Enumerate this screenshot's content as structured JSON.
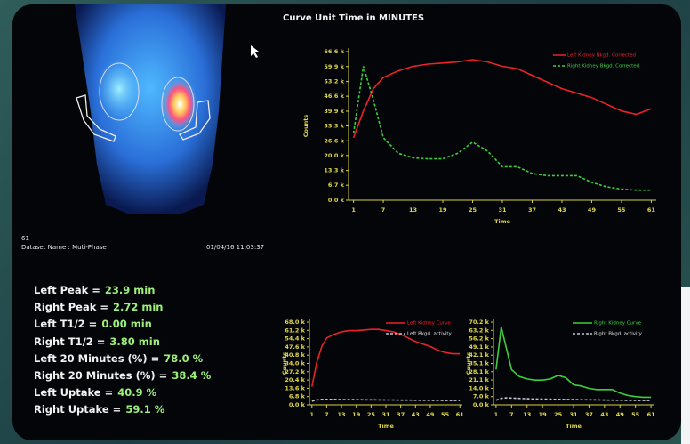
{
  "chart_data": [
    {
      "type": "line",
      "title": "Curve Unit Time in MINUTES",
      "xlabel": "Time",
      "ylabel": "Counts",
      "x": [
        1,
        3,
        5,
        7,
        10,
        13,
        16,
        19,
        22,
        25,
        28,
        31,
        34,
        37,
        40,
        43,
        46,
        49,
        52,
        55,
        58,
        61
      ],
      "xlim": [
        0,
        62
      ],
      "xticks": [
        1,
        7,
        13,
        19,
        25,
        31,
        37,
        43,
        49,
        55,
        61
      ],
      "ylim": [
        0,
        66600
      ],
      "yticks": [
        {
          "value": 0,
          "label": "0.0 k"
        },
        {
          "value": 6700,
          "label": "6.7 k"
        },
        {
          "value": 13300,
          "label": "13.3 k"
        },
        {
          "value": 20000,
          "label": "20.0 k"
        },
        {
          "value": 26600,
          "label": "26.6 k"
        },
        {
          "value": 33300,
          "label": "33.3 k"
        },
        {
          "value": 39900,
          "label": "39.9 k"
        },
        {
          "value": 46600,
          "label": "46.6 k"
        },
        {
          "value": 53200,
          "label": "53.2 k"
        },
        {
          "value": 59900,
          "label": "59.9 k"
        },
        {
          "value": 66600,
          "label": "66.6 k"
        }
      ],
      "series": [
        {
          "name": "Left Kidney Bkgd. Corrected",
          "color": "#ec2228",
          "dashed": false,
          "values": [
            28000,
            40000,
            50000,
            55000,
            58000,
            60000,
            61000,
            61500,
            62000,
            63000,
            62000,
            60000,
            59000,
            56000,
            53000,
            50000,
            48000,
            46000,
            43000,
            40000,
            38500,
            41000
          ]
        },
        {
          "name": "Right Kidney Bkgd. Corrected",
          "color": "#3cd03c",
          "dashed": true,
          "values": [
            30000,
            60000,
            45000,
            28000,
            21000,
            19000,
            18500,
            18500,
            21000,
            26000,
            22000,
            15000,
            15000,
            12000,
            11000,
            11000,
            11000,
            8000,
            6000,
            5000,
            4500,
            4500
          ]
        }
      ]
    },
    {
      "type": "line",
      "xlabel": "Time",
      "ylabel": "Counts",
      "x": [
        1,
        3,
        5,
        7,
        10,
        13,
        16,
        19,
        22,
        25,
        28,
        31,
        34,
        37,
        40,
        43,
        46,
        49,
        52,
        55,
        58,
        61
      ],
      "xlim": [
        0,
        62
      ],
      "xticks": [
        1,
        7,
        13,
        19,
        25,
        31,
        37,
        43,
        49,
        55,
        61
      ],
      "ylim": [
        0,
        68000
      ],
      "yticks": [
        {
          "value": 0,
          "label": "0.0 k"
        },
        {
          "value": 6800,
          "label": "6.8 k"
        },
        {
          "value": 13600,
          "label": "13.6 k"
        },
        {
          "value": 20400,
          "label": "20.4 k"
        },
        {
          "value": 27200,
          "label": "27.2 k"
        },
        {
          "value": 34000,
          "label": "34.0 k"
        },
        {
          "value": 40800,
          "label": "40.8 k"
        },
        {
          "value": 47600,
          "label": "47.6 k"
        },
        {
          "value": 54400,
          "label": "54.4 k"
        },
        {
          "value": 61200,
          "label": "61.2 k"
        },
        {
          "value": 68000,
          "label": "68.0 k"
        }
      ],
      "series": [
        {
          "name": "Left Kidney Curve",
          "color": "#ec2228",
          "dashed": false,
          "values": [
            15000,
            35000,
            48000,
            55000,
            58000,
            60000,
            61000,
            61000,
            61500,
            62000,
            62000,
            61000,
            60000,
            58000,
            55000,
            52000,
            50000,
            48000,
            45000,
            43000,
            42000,
            42000
          ]
        },
        {
          "name": "Left Bkgd. activity",
          "color": "#c4c4d4",
          "dashed": true,
          "values": [
            3000,
            4000,
            4500,
            4500,
            4500,
            4400,
            4300,
            4300,
            4200,
            4200,
            4100,
            4000,
            4000,
            3900,
            3900,
            3800,
            3800,
            3700,
            3700,
            3600,
            3600,
            3600
          ]
        }
      ]
    },
    {
      "type": "line",
      "xlabel": "Time",
      "ylabel": "Counts",
      "x": [
        1,
        3,
        5,
        7,
        10,
        13,
        16,
        19,
        22,
        25,
        28,
        31,
        34,
        37,
        40,
        43,
        46,
        49,
        52,
        55,
        58,
        61
      ],
      "xlim": [
        0,
        62
      ],
      "xticks": [
        1,
        7,
        13,
        19,
        25,
        31,
        37,
        43,
        49,
        55,
        61
      ],
      "ylim": [
        0,
        70200
      ],
      "yticks": [
        {
          "value": 0,
          "label": "0.0 k"
        },
        {
          "value": 7000,
          "label": "7.0 k"
        },
        {
          "value": 14000,
          "label": "14.0 k"
        },
        {
          "value": 21100,
          "label": "21.1 k"
        },
        {
          "value": 28100,
          "label": "28.1 k"
        },
        {
          "value": 35100,
          "label": "35.1 k"
        },
        {
          "value": 42100,
          "label": "42.1 k"
        },
        {
          "value": 49100,
          "label": "49.1 k"
        },
        {
          "value": 56200,
          "label": "56.2 k"
        },
        {
          "value": 63200,
          "label": "63.2 k"
        },
        {
          "value": 70200,
          "label": "70.2 k"
        }
      ],
      "series": [
        {
          "name": "Right Kidney Curve",
          "color": "#3cd03c",
          "dashed": false,
          "values": [
            30000,
            66000,
            48000,
            30000,
            24000,
            22000,
            21000,
            21000,
            22000,
            25000,
            23000,
            17000,
            16000,
            14000,
            13000,
            13000,
            13000,
            10000,
            8000,
            7000,
            6500,
            6500
          ]
        },
        {
          "name": "Right Bkgd. activity",
          "color": "#c4c4d4",
          "dashed": true,
          "values": [
            4000,
            5500,
            6000,
            5800,
            5500,
            5200,
            5000,
            4900,
            4800,
            4700,
            4600,
            4500,
            4400,
            4300,
            4200,
            4100,
            4000,
            3900,
            3800,
            3800,
            3700,
            3700
          ]
        }
      ]
    }
  ],
  "image_panel": {
    "frame": "61",
    "dataset": "Dataset Name :  Muti-Phase",
    "timestamp": "01/04/16 11:03:37"
  },
  "results": [
    {
      "label": "Left Peak =",
      "value": "23.9 min"
    },
    {
      "label": "Right Peak =",
      "value": "2.72 min"
    },
    {
      "label": "Left T1/2 =",
      "value": "0.00 min"
    },
    {
      "label": "Right T1/2 =",
      "value": "3.80 min"
    },
    {
      "label": "Left 20 Minutes (%) =",
      "value": "78.0  %"
    },
    {
      "label": "Right 20 Minutes (%) =",
      "value": "38.4  %"
    },
    {
      "label": "Left Uptake =",
      "value": "40.9  %"
    },
    {
      "label": "Right Uptake =",
      "value": "59.1  %"
    }
  ]
}
